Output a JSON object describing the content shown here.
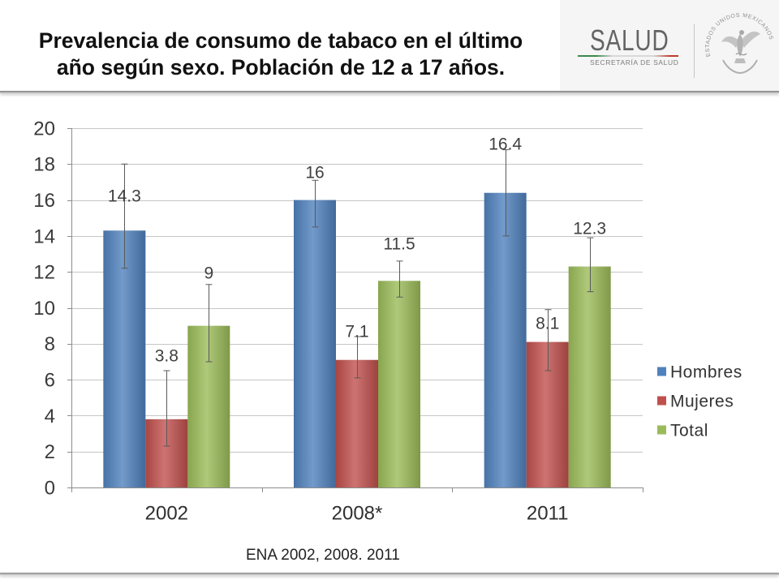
{
  "header": {
    "title_lines": [
      "Prevalencia de consumo de tabaco en el último",
      "año según sexo. Población de 12 a 17 años."
    ]
  },
  "logo": {
    "wordmark": "SALUD",
    "subtitle": "SECRETARÍA DE SALUD",
    "seal_text": "ESTADOS UNIDOS MEXICANOS"
  },
  "footer": {
    "source": "ENA 2002, 2008. 2011"
  },
  "chart_data": {
    "type": "bar",
    "categories": [
      "2002",
      "2008*",
      "2011"
    ],
    "series": [
      {
        "name": "Hombres",
        "color": "#4f81bd",
        "values": [
          14.3,
          16,
          16.4
        ],
        "error_low": [
          12.2,
          14.5,
          14.0
        ],
        "error_high": [
          18.0,
          17.1,
          18.8
        ]
      },
      {
        "name": "Mujeres",
        "color": "#c0504d",
        "values": [
          3.8,
          7.1,
          8.1
        ],
        "error_low": [
          2.3,
          6.1,
          6.5
        ],
        "error_high": [
          6.5,
          8.4,
          9.9
        ]
      },
      {
        "name": "Total",
        "color": "#9bbb59",
        "values": [
          9,
          11.5,
          12.3
        ],
        "error_low": [
          7.0,
          10.6,
          10.9
        ],
        "error_high": [
          11.3,
          12.6,
          13.9
        ]
      }
    ],
    "yticks": [
      0,
      2,
      4,
      6,
      8,
      10,
      12,
      14,
      16,
      18,
      20
    ],
    "ylim": [
      0,
      20
    ],
    "grid": true,
    "legend": "right"
  }
}
